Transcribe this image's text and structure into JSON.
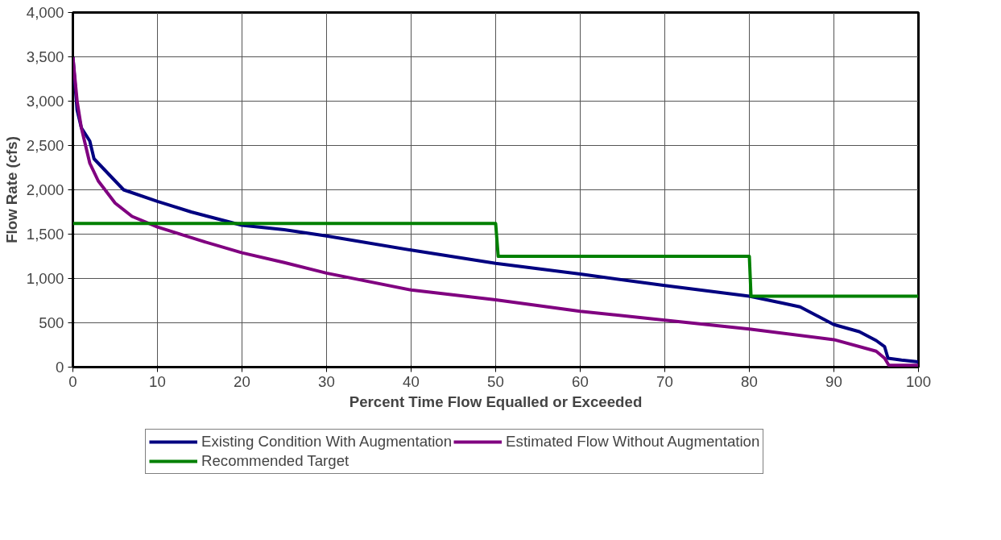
{
  "chart_data": {
    "type": "line",
    "xlabel": "Percent Time Flow Equalled or Exceeded",
    "ylabel": "Flow Rate (cfs)",
    "xlim": [
      0,
      100
    ],
    "xticks": [
      0,
      10,
      20,
      30,
      40,
      50,
      60,
      70,
      80,
      90,
      100
    ],
    "ylim": [
      0,
      4000
    ],
    "yticks": [
      {
        "value": 0,
        "label": "0"
      },
      {
        "value": 500,
        "label": "500"
      },
      {
        "value": 1000,
        "label": "1,000"
      },
      {
        "value": 1500,
        "label": "1,500"
      },
      {
        "value": 2000,
        "label": "2,000"
      },
      {
        "value": 2500,
        "label": "2,500"
      },
      {
        "value": 3000,
        "label": "3,000"
      },
      {
        "value": 3500,
        "label": "3,500"
      },
      {
        "value": 4000,
        "label": "4,000"
      }
    ],
    "grid": true,
    "legend": "bottom",
    "marker": "none",
    "line_style": "solid",
    "series": [
      {
        "name": "Existing Condition With Augmentation",
        "color": "#000080",
        "x": [
          0,
          0.5,
          1,
          2,
          2.5,
          4,
          6,
          10,
          14,
          18,
          20,
          25,
          30,
          40,
          50,
          60,
          70,
          80,
          84,
          86,
          88,
          90,
          93,
          95,
          96,
          96.4,
          98,
          100
        ],
        "values": [
          3500,
          2900,
          2700,
          2550,
          2350,
          2200,
          2000,
          1870,
          1750,
          1650,
          1600,
          1550,
          1480,
          1320,
          1170,
          1050,
          920,
          800,
          720,
          680,
          580,
          480,
          400,
          300,
          230,
          100,
          80,
          60
        ]
      },
      {
        "name": "Estimated Flow Without Augmentation",
        "color": "#800080",
        "x": [
          0,
          0.5,
          1,
          2,
          3,
          5,
          7,
          10,
          15,
          20,
          25,
          30,
          40,
          50,
          60,
          70,
          80,
          90,
          95,
          96,
          96.5,
          100
        ],
        "values": [
          3500,
          3000,
          2700,
          2300,
          2100,
          1850,
          1700,
          1580,
          1430,
          1290,
          1180,
          1060,
          870,
          760,
          630,
          530,
          430,
          310,
          180,
          100,
          20,
          20
        ]
      },
      {
        "name": "Recommended Target",
        "color": "#008000",
        "x": [
          0,
          50,
          50.3,
          80,
          80.2,
          100
        ],
        "values": [
          1620,
          1620,
          1250,
          1250,
          800,
          800
        ]
      }
    ]
  }
}
